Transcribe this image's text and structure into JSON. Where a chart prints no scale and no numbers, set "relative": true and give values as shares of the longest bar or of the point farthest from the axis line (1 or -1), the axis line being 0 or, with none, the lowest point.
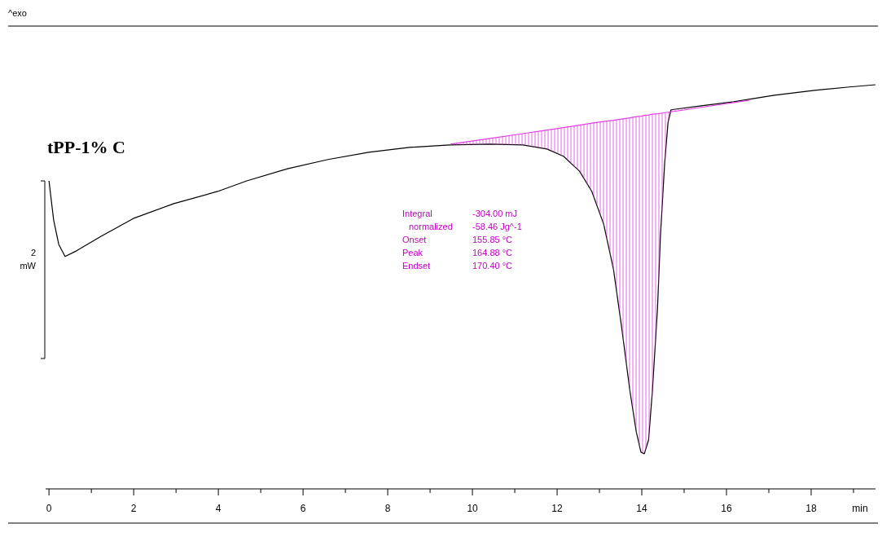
{
  "chart_data": {
    "type": "line",
    "title": "tPP-1% C",
    "xlabel": "min",
    "ylabel": "2 mW",
    "relative": true,
    "xlim": [
      -0.08,
      19.52
    ],
    "xticks": [
      0,
      {
        "value": 1,
        "label": null
      },
      2,
      {
        "value": 3,
        "label": null
      },
      4,
      {
        "value": 5,
        "label": null
      },
      6,
      {
        "value": 7,
        "label": null
      },
      8,
      {
        "value": 9,
        "label": null
      },
      10,
      {
        "value": 11,
        "label": null
      },
      12,
      {
        "value": 13,
        "label": null
      },
      14,
      {
        "value": 15,
        "label": null
      },
      16,
      {
        "value": 17,
        "label": null
      },
      18,
      {
        "value": 19,
        "label": null
      }
    ],
    "annotations": [
      "^exo",
      "Integral",
      "-304.00 mJ",
      "normalized",
      "-58.46 Jg^-1",
      "Onset",
      "155.85 °C",
      "Peak",
      "164.88 °C",
      "Endset",
      "170.40 °C"
    ],
    "series": [
      {
        "color": "#000000",
        "x": [
          0,
          0.11,
          0.23,
          0.38,
          0.65,
          1.23,
          1.99,
          2.95,
          3.98,
          4.67,
          5.63,
          6.59,
          7.55,
          8.51,
          9.46,
          10.42,
          11.19,
          11.76,
          12.15,
          12.53,
          12.82,
          13.1,
          13.33,
          13.52,
          13.72,
          13.87,
          13.98,
          14.06,
          14.16,
          14.25,
          14.37,
          14.44,
          14.54,
          14.62,
          14.69,
          14.83,
          15.4,
          16.17,
          17.13,
          18.08,
          18.85,
          19.52
        ],
        "values": [
          0.762,
          0.665,
          0.605,
          0.575,
          0.589,
          0.625,
          0.669,
          0.706,
          0.736,
          0.762,
          0.792,
          0.815,
          0.833,
          0.845,
          0.851,
          0.853,
          0.851,
          0.841,
          0.823,
          0.786,
          0.736,
          0.655,
          0.544,
          0.403,
          0.242,
          0.141,
          0.091,
          0.087,
          0.121,
          0.242,
          0.444,
          0.625,
          0.806,
          0.907,
          0.938,
          0.94,
          0.948,
          0.958,
          0.974,
          0.986,
          0.994,
          1
        ]
      },
      {
        "color": "#e040e0",
        "x": [
          9.48,
          10.42,
          11.19,
          11.76,
          12.15,
          12.53,
          12.82,
          13.1,
          13.33,
          13.52,
          13.72,
          13.87,
          13.98,
          14.06,
          14.16,
          14.25,
          14.37,
          14.44,
          14.54,
          14.62,
          14.69,
          14.83,
          15.4,
          16.17,
          16.55
        ],
        "values": [
          0.853,
          0.867,
          0.879,
          0.888,
          0.894,
          0.9,
          0.905,
          0.909,
          0.912,
          0.915,
          0.918,
          0.921,
          0.922,
          0.924,
          0.925,
          0.927,
          0.928,
          0.929,
          0.931,
          0.932,
          0.933,
          0.935,
          0.944,
          0.956,
          0.962
        ],
        "upper": [
          0.853,
          0.867,
          0.879,
          0.888,
          0.894,
          0.9,
          0.905,
          0.909,
          0.912,
          0.915,
          0.918,
          0.921,
          0.922,
          0.924,
          0.925,
          0.927,
          0.928,
          0.929,
          0.931,
          0.932,
          0.933,
          0.935,
          0.944,
          0.956,
          0.962
        ],
        "lower": [
          0.851,
          0.853,
          0.851,
          0.841,
          0.823,
          0.786,
          0.736,
          0.655,
          0.544,
          0.403,
          0.242,
          0.141,
          0.091,
          0.087,
          0.121,
          0.242,
          0.444,
          0.625,
          0.806,
          0.907,
          0.938,
          0.94,
          0.944,
          0.956,
          0.962
        ]
      }
    ]
  }
}
